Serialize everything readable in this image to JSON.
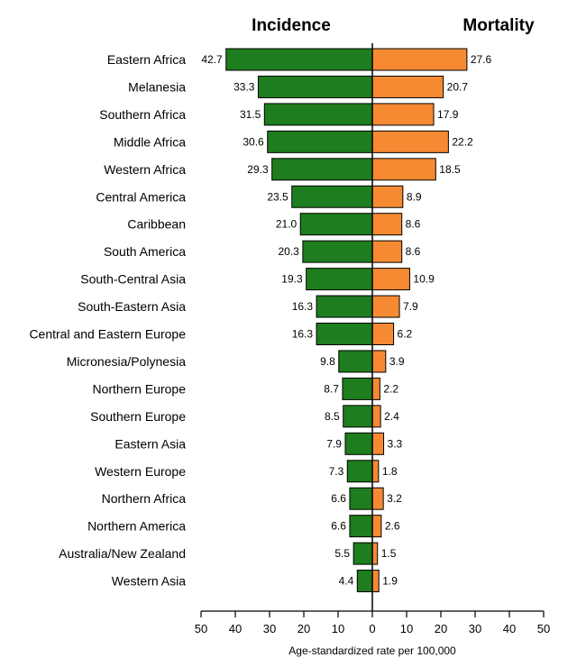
{
  "chart_data": {
    "type": "bar",
    "orientation": "horizontal-butterfly",
    "categories": [
      "Eastern Africa",
      "Melanesia",
      "Southern Africa",
      "Middle Africa",
      "Western Africa",
      "Central America",
      "Caribbean",
      "South America",
      "South-Central Asia",
      "South-Eastern Asia",
      "Central and Eastern Europe",
      "Micronesia/Polynesia",
      "Northern Europe",
      "Southern Europe",
      "Eastern Asia",
      "Western Europe",
      "Northern Africa",
      "Northern America",
      "Australia/New Zealand",
      "Western Asia"
    ],
    "series": [
      {
        "name": "Incidence",
        "color": "#1e7d1e",
        "direction": "left",
        "values": [
          42.7,
          33.3,
          31.5,
          30.6,
          29.3,
          23.5,
          21.0,
          20.3,
          19.3,
          16.3,
          16.3,
          9.8,
          8.7,
          8.5,
          7.9,
          7.3,
          6.6,
          6.6,
          5.5,
          4.4
        ],
        "labels": [
          "42.7",
          "33.3",
          "31.5",
          "30.6",
          "29.3",
          "23.5",
          "21.0",
          "20.3",
          "19.3",
          "16.3",
          "16.3",
          "9.8",
          "8.7",
          "8.5",
          "7.9",
          "7.3",
          "6.6",
          "6.6",
          "5.5",
          "4.4"
        ]
      },
      {
        "name": "Mortality",
        "color": "#f58a32",
        "direction": "right",
        "values": [
          27.6,
          20.7,
          17.9,
          22.2,
          18.5,
          8.9,
          8.6,
          8.6,
          10.9,
          7.9,
          6.2,
          3.9,
          2.2,
          2.4,
          3.3,
          1.8,
          3.2,
          2.6,
          1.5,
          1.9
        ],
        "labels": [
          "27.6",
          "20.7",
          "17.9",
          "22.2",
          "18.5",
          "8.9",
          "8.6",
          "8.6",
          "10.9",
          "7.9",
          "6.2",
          "3.9",
          "2.2",
          "2.4",
          "3.3",
          "1.8",
          "3.2",
          "2.6",
          "1.5",
          "1.9"
        ]
      }
    ],
    "xlabel": "Age-standardized rate per 100,000",
    "xlim": [
      -50,
      50
    ],
    "xticks": [
      -50,
      -40,
      -30,
      -20,
      -10,
      0,
      10,
      20,
      30,
      40,
      50
    ],
    "xtick_labels": [
      "50",
      "40",
      "30",
      "20",
      "10",
      "0",
      "10",
      "20",
      "30",
      "40",
      "50"
    ],
    "grid": false
  }
}
